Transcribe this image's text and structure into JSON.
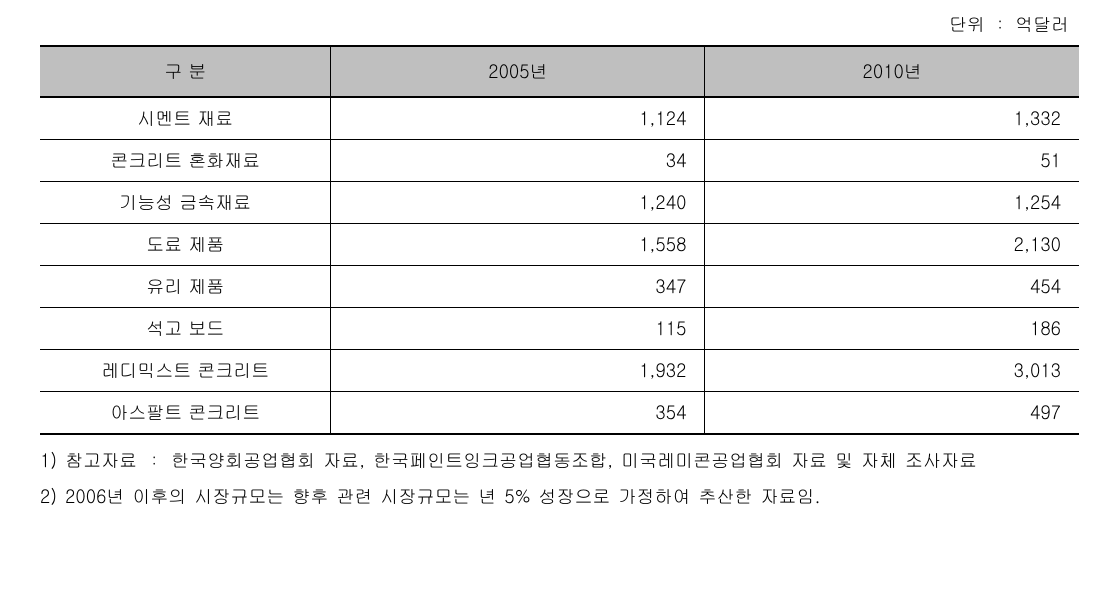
{
  "unit_label": "단위 ： 억달러",
  "table": {
    "columns": {
      "category": "구 분",
      "year1": "2005년",
      "year2": "2010년"
    },
    "rows": [
      {
        "category": "시멘트 재료",
        "year1": "1,124",
        "year2": "1,332"
      },
      {
        "category": "콘크리트 혼화재료",
        "year1": "34",
        "year2": "51"
      },
      {
        "category": "기능성 금속재료",
        "year1": "1,240",
        "year2": "1,254"
      },
      {
        "category": "도료 제품",
        "year1": "1,558",
        "year2": "2,130"
      },
      {
        "category": "유리 제품",
        "year1": "347",
        "year2": "454"
      },
      {
        "category": "석고 보드",
        "year1": "115",
        "year2": "186"
      },
      {
        "category": "레디믹스트 콘크리트",
        "year1": "1,932",
        "year2": "3,013"
      },
      {
        "category": "아스팔트 콘크리트",
        "year1": "354",
        "year2": "497"
      }
    ],
    "header_background": "#bfbfbf",
    "border_color": "#000000",
    "text_color": "#000000",
    "background_color": "#ffffff",
    "font_size": 18
  },
  "footnotes": {
    "note1": "1) 참고자료 ： 한국양회공업협회 자료, 한국페인트잉크공업협동조합, 미국레미콘공업협회 자료 및 자체 조사자료",
    "note2": "2) 2006년 이후의 시장규모는 향후 관련 시장규모는 년 5% 성장으로 가정하여 추산한 자료임."
  }
}
